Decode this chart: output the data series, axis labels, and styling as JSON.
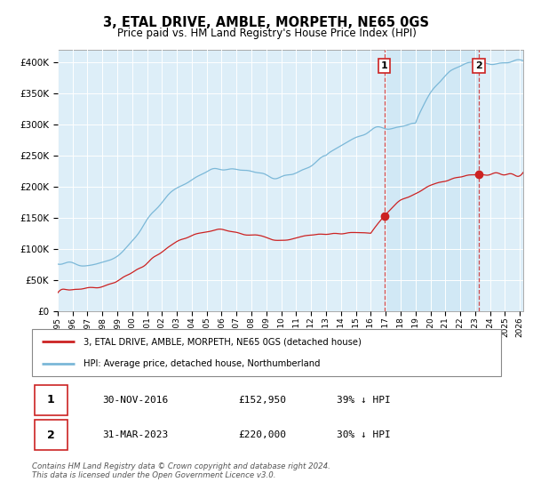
{
  "title": "3, ETAL DRIVE, AMBLE, MORPETH, NE65 0GS",
  "subtitle": "Price paid vs. HM Land Registry's House Price Index (HPI)",
  "hpi_color": "#7bb8d8",
  "price_color": "#cc2222",
  "vline_color": "#cc2222",
  "shade_color": "#d0e8f5",
  "bg_color": "#ddeef8",
  "grid_color": "#ffffff",
  "ylim": [
    0,
    420000
  ],
  "yticks": [
    0,
    50000,
    100000,
    150000,
    200000,
    250000,
    300000,
    350000,
    400000
  ],
  "xlim_start": 1995.0,
  "xlim_end": 2026.2,
  "sale1_x": 2016.917,
  "sale1_y": 152950,
  "sale2_x": 2023.25,
  "sale2_y": 220000,
  "sale1_label": "30-NOV-2016",
  "sale1_price": "£152,950",
  "sale1_note": "39% ↓ HPI",
  "sale2_label": "31-MAR-2023",
  "sale2_price": "£220,000",
  "sale2_note": "30% ↓ HPI",
  "legend_line1": "3, ETAL DRIVE, AMBLE, MORPETH, NE65 0GS (detached house)",
  "legend_line2": "HPI: Average price, detached house, Northumberland",
  "footer": "Contains HM Land Registry data © Crown copyright and database right 2024.\nThis data is licensed under the Open Government Licence v3.0."
}
